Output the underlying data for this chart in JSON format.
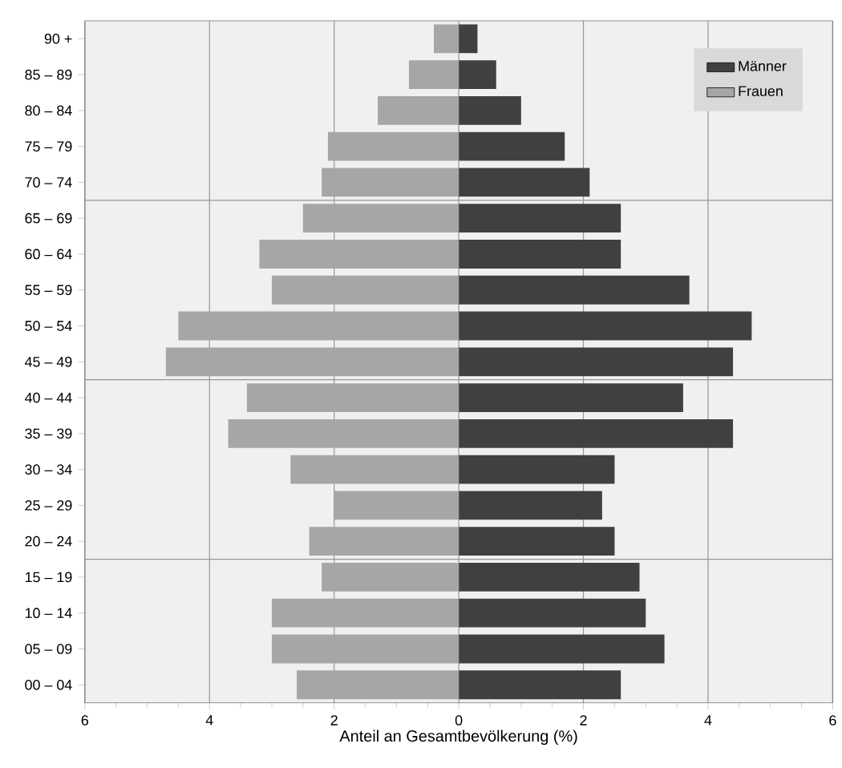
{
  "chart_data": {
    "type": "bar",
    "orientation": "horizontal",
    "xlabel": "Anteil an Gesamtbevölkerung (%)",
    "categories": [
      "90 +",
      "85 – 89",
      "80 – 84",
      "75 – 79",
      "70 – 74",
      "65 – 69",
      "60 – 64",
      "55 – 59",
      "50 – 54",
      "45 – 49",
      "40 – 44",
      "35 – 39",
      "30 – 34",
      "25 – 29",
      "20 – 24",
      "15 – 19",
      "10 – 14",
      "05 – 09",
      "00 – 04"
    ],
    "series": [
      {
        "name": "Männer",
        "color": "#404040",
        "values": [
          0.3,
          0.6,
          1.0,
          1.7,
          2.1,
          2.6,
          2.6,
          3.7,
          4.7,
          4.4,
          3.6,
          4.4,
          2.5,
          2.3,
          2.5,
          2.9,
          3.0,
          3.3,
          2.6
        ]
      },
      {
        "name": "Frauen",
        "color": "#a6a6a6",
        "values": [
          -0.4,
          -0.8,
          -1.3,
          -2.1,
          -2.2,
          -2.5,
          -3.2,
          -3.0,
          -4.5,
          -4.7,
          -3.4,
          -3.7,
          -2.7,
          -2.0,
          -2.4,
          -2.2,
          -3.0,
          -3.0,
          -2.6
        ]
      }
    ],
    "xlim": [
      -6,
      6
    ],
    "xticks": [
      {
        "value": -6,
        "label": "6"
      },
      {
        "value": -4,
        "label": "4"
      },
      {
        "value": -2,
        "label": "2"
      },
      0,
      2,
      4,
      6
    ],
    "stacked": true,
    "grid": true,
    "legend": "top right"
  }
}
